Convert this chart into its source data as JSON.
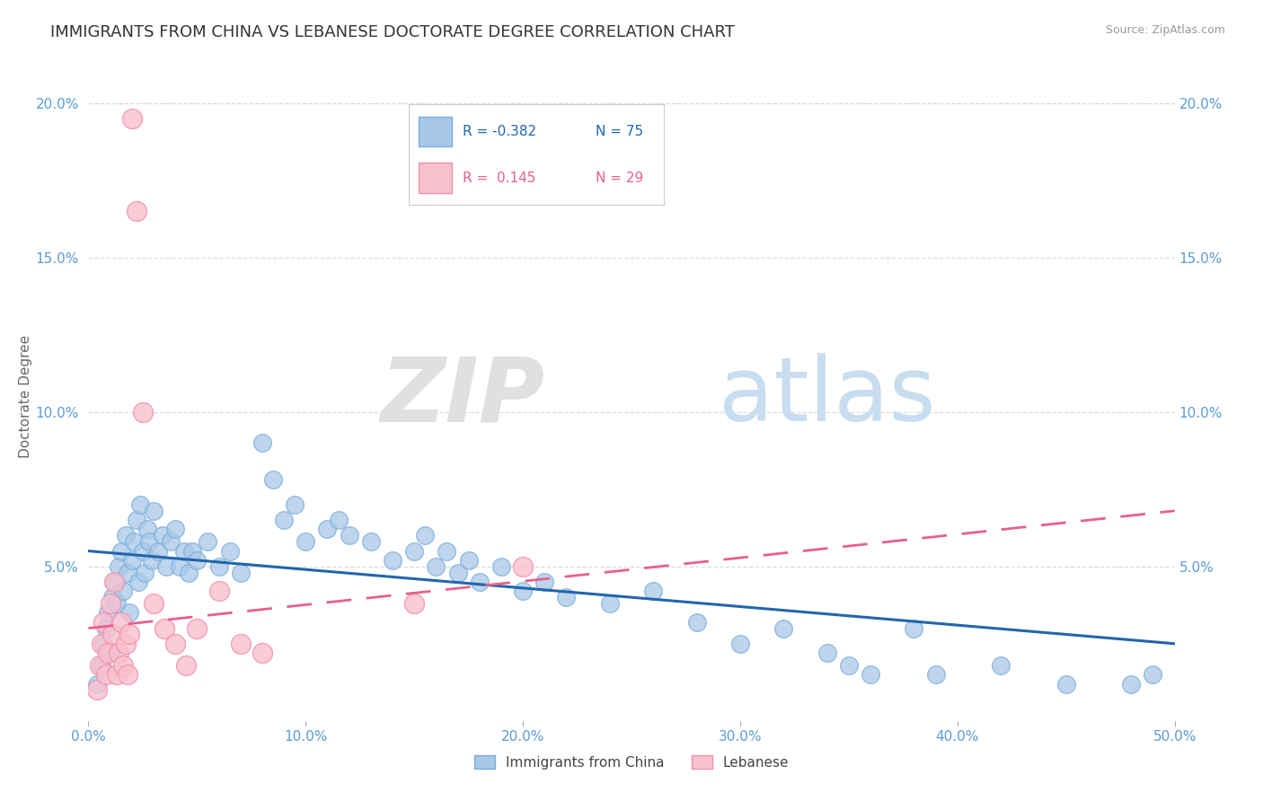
{
  "title": "IMMIGRANTS FROM CHINA VS LEBANESE DOCTORATE DEGREE CORRELATION CHART",
  "source": "Source: ZipAtlas.com",
  "ylabel": "Doctorate Degree",
  "xlim": [
    0.0,
    0.5
  ],
  "ylim": [
    0.0,
    0.21
  ],
  "xtick_labels": [
    "0.0%",
    "10.0%",
    "20.0%",
    "30.0%",
    "40.0%",
    "50.0%"
  ],
  "xtick_vals": [
    0.0,
    0.1,
    0.2,
    0.3,
    0.4,
    0.5
  ],
  "ytick_labels": [
    "",
    "5.0%",
    "10.0%",
    "15.0%",
    "20.0%"
  ],
  "ytick_vals": [
    0.0,
    0.05,
    0.1,
    0.15,
    0.2
  ],
  "color_china": "#a8c8e8",
  "color_china_edge": "#7aaedb",
  "color_lebanese": "#f9c0cf",
  "color_lebanese_edge": "#f090aa",
  "color_china_line": "#2166ac",
  "color_lebanese_line": "#e8608a",
  "china_scatter": [
    [
      0.004,
      0.012
    ],
    [
      0.006,
      0.018
    ],
    [
      0.007,
      0.025
    ],
    [
      0.008,
      0.03
    ],
    [
      0.009,
      0.035
    ],
    [
      0.01,
      0.022
    ],
    [
      0.011,
      0.04
    ],
    [
      0.012,
      0.045
    ],
    [
      0.013,
      0.038
    ],
    [
      0.014,
      0.05
    ],
    [
      0.015,
      0.055
    ],
    [
      0.016,
      0.042
    ],
    [
      0.017,
      0.06
    ],
    [
      0.018,
      0.048
    ],
    [
      0.019,
      0.035
    ],
    [
      0.02,
      0.052
    ],
    [
      0.021,
      0.058
    ],
    [
      0.022,
      0.065
    ],
    [
      0.023,
      0.045
    ],
    [
      0.024,
      0.07
    ],
    [
      0.025,
      0.055
    ],
    [
      0.026,
      0.048
    ],
    [
      0.027,
      0.062
    ],
    [
      0.028,
      0.058
    ],
    [
      0.029,
      0.052
    ],
    [
      0.03,
      0.068
    ],
    [
      0.032,
      0.055
    ],
    [
      0.034,
      0.06
    ],
    [
      0.036,
      0.05
    ],
    [
      0.038,
      0.058
    ],
    [
      0.04,
      0.062
    ],
    [
      0.042,
      0.05
    ],
    [
      0.044,
      0.055
    ],
    [
      0.046,
      0.048
    ],
    [
      0.048,
      0.055
    ],
    [
      0.05,
      0.052
    ],
    [
      0.055,
      0.058
    ],
    [
      0.06,
      0.05
    ],
    [
      0.065,
      0.055
    ],
    [
      0.07,
      0.048
    ],
    [
      0.08,
      0.09
    ],
    [
      0.085,
      0.078
    ],
    [
      0.09,
      0.065
    ],
    [
      0.095,
      0.07
    ],
    [
      0.1,
      0.058
    ],
    [
      0.11,
      0.062
    ],
    [
      0.115,
      0.065
    ],
    [
      0.12,
      0.06
    ],
    [
      0.13,
      0.058
    ],
    [
      0.14,
      0.052
    ],
    [
      0.15,
      0.055
    ],
    [
      0.155,
      0.06
    ],
    [
      0.16,
      0.05
    ],
    [
      0.165,
      0.055
    ],
    [
      0.17,
      0.048
    ],
    [
      0.175,
      0.052
    ],
    [
      0.18,
      0.045
    ],
    [
      0.19,
      0.05
    ],
    [
      0.2,
      0.042
    ],
    [
      0.21,
      0.045
    ],
    [
      0.22,
      0.04
    ],
    [
      0.24,
      0.038
    ],
    [
      0.26,
      0.042
    ],
    [
      0.28,
      0.032
    ],
    [
      0.3,
      0.025
    ],
    [
      0.32,
      0.03
    ],
    [
      0.34,
      0.022
    ],
    [
      0.35,
      0.018
    ],
    [
      0.36,
      0.015
    ],
    [
      0.38,
      0.03
    ],
    [
      0.39,
      0.015
    ],
    [
      0.42,
      0.018
    ],
    [
      0.45,
      0.012
    ],
    [
      0.48,
      0.012
    ],
    [
      0.49,
      0.015
    ]
  ],
  "lebanese_scatter": [
    [
      0.004,
      0.01
    ],
    [
      0.005,
      0.018
    ],
    [
      0.006,
      0.025
    ],
    [
      0.007,
      0.032
    ],
    [
      0.008,
      0.015
    ],
    [
      0.009,
      0.022
    ],
    [
      0.01,
      0.038
    ],
    [
      0.011,
      0.028
    ],
    [
      0.012,
      0.045
    ],
    [
      0.013,
      0.015
    ],
    [
      0.014,
      0.022
    ],
    [
      0.015,
      0.032
    ],
    [
      0.016,
      0.018
    ],
    [
      0.017,
      0.025
    ],
    [
      0.018,
      0.015
    ],
    [
      0.019,
      0.028
    ],
    [
      0.02,
      0.195
    ],
    [
      0.022,
      0.165
    ],
    [
      0.025,
      0.1
    ],
    [
      0.03,
      0.038
    ],
    [
      0.035,
      0.03
    ],
    [
      0.04,
      0.025
    ],
    [
      0.045,
      0.018
    ],
    [
      0.05,
      0.03
    ],
    [
      0.06,
      0.042
    ],
    [
      0.07,
      0.025
    ],
    [
      0.08,
      0.022
    ],
    [
      0.15,
      0.038
    ],
    [
      0.2,
      0.05
    ]
  ],
  "china_trend_x": [
    0.0,
    0.5
  ],
  "china_trend_y": [
    0.055,
    0.025
  ],
  "lebanese_trend_x": [
    0.0,
    0.5
  ],
  "lebanese_trend_y": [
    0.03,
    0.068
  ]
}
